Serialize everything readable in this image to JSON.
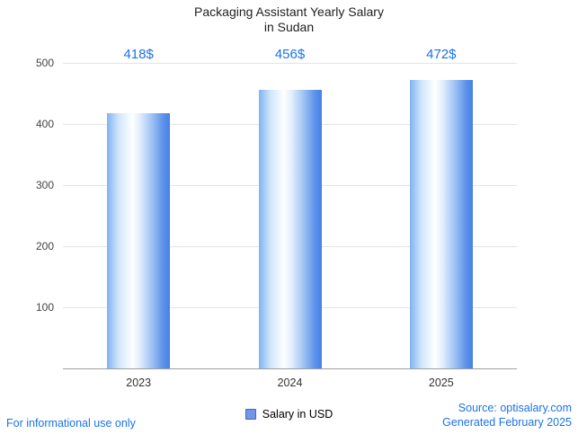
{
  "title": {
    "line1": "Packaging Assistant Yearly Salary",
    "line2": "in Sudan"
  },
  "chart_data": {
    "type": "bar",
    "title": "Packaging Assistant Yearly Salary in Sudan",
    "categories": [
      "2023",
      "2024",
      "2025"
    ],
    "values": [
      418,
      456,
      472
    ],
    "value_labels": [
      "418$",
      "456$",
      "472$"
    ],
    "series_name": "Salary in USD",
    "xlabel": "",
    "ylabel": "",
    "ylim": [
      0,
      500
    ],
    "yticks": [
      100,
      200,
      300,
      400,
      500
    ],
    "grid": true,
    "legend_position": "bottom",
    "bar_color": "#4482e7",
    "value_label_color": "#1a73e8"
  },
  "legend": {
    "label": "Salary in USD"
  },
  "footer": {
    "left": "For informational use only",
    "source": "Source: optisalary.com",
    "generated": "Generated February 2025"
  }
}
